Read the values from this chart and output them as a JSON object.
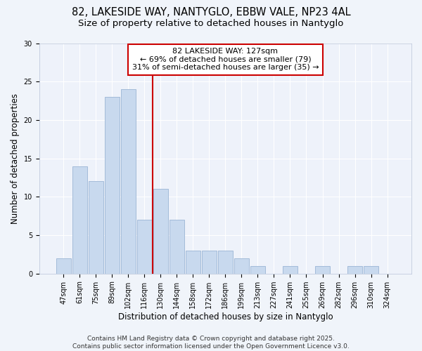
{
  "title1": "82, LAKESIDE WAY, NANTYGLO, EBBW VALE, NP23 4AL",
  "title2": "Size of property relative to detached houses in Nantyglo",
  "xlabel": "Distribution of detached houses by size in Nantyglo",
  "ylabel": "Number of detached properties",
  "bar_labels": [
    "47sqm",
    "61sqm",
    "75sqm",
    "89sqm",
    "102sqm",
    "116sqm",
    "130sqm",
    "144sqm",
    "158sqm",
    "172sqm",
    "186sqm",
    "199sqm",
    "213sqm",
    "227sqm",
    "241sqm",
    "255sqm",
    "269sqm",
    "282sqm",
    "296sqm",
    "310sqm",
    "324sqm"
  ],
  "bar_values": [
    2,
    14,
    12,
    23,
    24,
    7,
    11,
    7,
    3,
    3,
    3,
    2,
    1,
    0,
    1,
    0,
    1,
    0,
    1,
    1,
    0
  ],
  "bar_color": "#c8d9ee",
  "bar_edge_color": "#9ab4d4",
  "reference_line_x": 5.5,
  "annotation_label": "82 LAKESIDE WAY: 127sqm",
  "annotation_line1": "← 69% of detached houses are smaller (79)",
  "annotation_line2": "31% of semi-detached houses are larger (35) →",
  "annotation_box_color": "#ffffff",
  "annotation_box_edge_color": "#cc0000",
  "ref_line_color": "#cc0000",
  "ylim": [
    0,
    30
  ],
  "yticks": [
    0,
    5,
    10,
    15,
    20,
    25,
    30
  ],
  "footer": "Contains HM Land Registry data © Crown copyright and database right 2025.\nContains public sector information licensed under the Open Government Licence v3.0.",
  "bg_color": "#f0f4fa",
  "plot_bg_color": "#eef2fa",
  "grid_color": "#ffffff",
  "title_fontsize": 10.5,
  "subtitle_fontsize": 9.5,
  "axis_label_fontsize": 8.5,
  "tick_fontsize": 7,
  "annotation_fontsize": 8,
  "footer_fontsize": 6.5
}
